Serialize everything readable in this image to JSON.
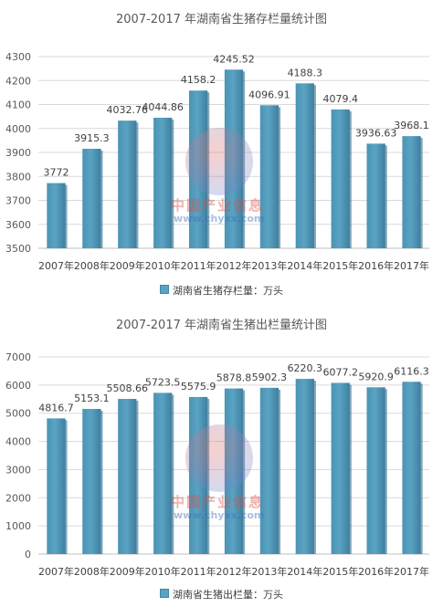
{
  "chart_data": [
    {
      "type": "bar",
      "title": "2007-2017 年湖南省生猪存栏量统计图",
      "categories": [
        "2007年",
        "2008年",
        "2009年",
        "2010年",
        "2011年",
        "2012年",
        "2013年",
        "2014年",
        "2015年",
        "2016年",
        "2017年"
      ],
      "series": [
        {
          "name": "湖南省生猪存栏量：万头",
          "values": [
            3772,
            3915.3,
            4032.76,
            4044.86,
            4158.2,
            4245.52,
            4096.91,
            4188.3,
            4079.4,
            3936.63,
            3968.1
          ]
        }
      ],
      "data_labels": [
        "3772",
        "3915.3",
        "4032.76",
        "4044.86",
        "4158.2",
        "4245.52",
        "4096.91",
        "4188.3",
        "4079.4",
        "3936.63",
        "3968.1"
      ],
      "ylim": [
        3500,
        4300
      ],
      "yticks": [
        "3500",
        "3600",
        "3700",
        "3800",
        "3900",
        "4000",
        "4100",
        "4200",
        "4300"
      ],
      "legend": "湖南省生猪存栏量：万头",
      "legend_position": "bottom",
      "grid": true,
      "bar_color": "#5aa3c2"
    },
    {
      "type": "bar",
      "title": "2007-2017 年湖南省生猪出栏量统计图",
      "categories": [
        "2007年",
        "2008年",
        "2009年",
        "2010年",
        "2011年",
        "2012年",
        "2013年",
        "2014年",
        "2015年",
        "2016年",
        "2017年"
      ],
      "series": [
        {
          "name": "湖南省生猪出栏量：万头",
          "values": [
            4816.7,
            5153.1,
            5508.66,
            5723.5,
            5575.9,
            5878.8,
            5902.3,
            6220.3,
            6077.2,
            5920.9,
            6116.3
          ]
        }
      ],
      "data_labels": [
        "4816.7",
        "5153.1",
        "5508.66",
        "5723.5",
        "5575.9",
        "5878.8",
        "5902.3",
        "6220.3",
        "6077.2",
        "5920.9",
        "6116.3"
      ],
      "ylim": [
        0,
        7000
      ],
      "yticks": [
        "0",
        "1000",
        "2000",
        "3000",
        "4000",
        "5000",
        "6000",
        "7000"
      ],
      "legend": "湖南省生猪出栏量：万头",
      "legend_position": "bottom",
      "grid": true,
      "bar_color": "#5aa3c2"
    }
  ],
  "watermark": {
    "text": "中国产业信息",
    "url": "www.chyxx.com"
  }
}
